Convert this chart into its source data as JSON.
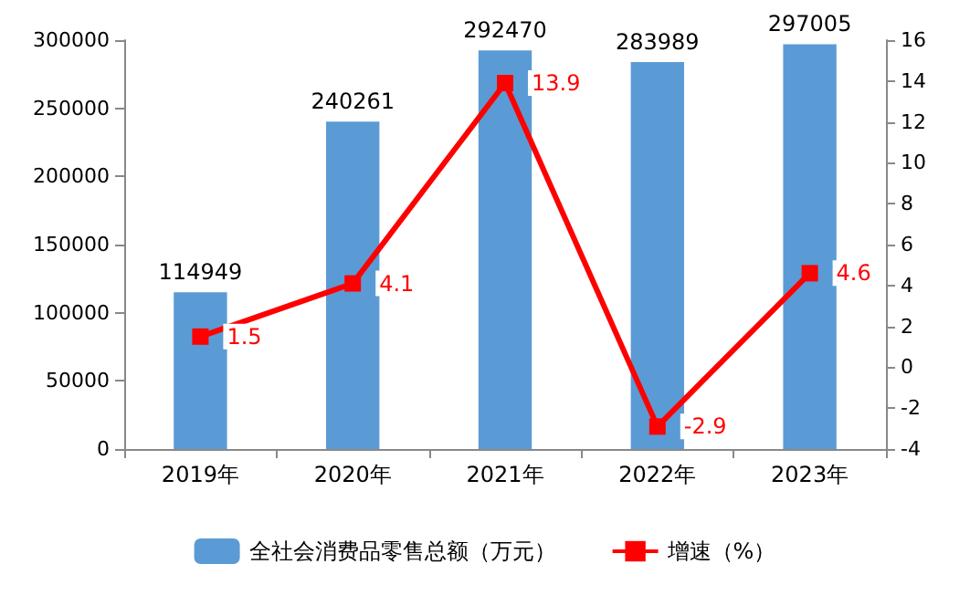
{
  "chart_data": {
    "type": "bar",
    "categories": [
      "2019年",
      "2020年",
      "2021年",
      "2022年",
      "2023年"
    ],
    "series": [
      {
        "name": "全社会消费品零售总额（万元）",
        "color": "#5b9bd5",
        "values": [
          114949,
          240261,
          292470,
          283989,
          297005
        ]
      },
      {
        "name": "增速（%）",
        "type": "line",
        "axis": "y2",
        "color": "#ff0000",
        "values": [
          1.5,
          4.1,
          13.9,
          -2.9,
          4.6
        ]
      }
    ],
    "ylim": [
      0,
      300000
    ],
    "yticks": [
      0,
      50000,
      100000,
      150000,
      200000,
      250000,
      300000
    ],
    "y2lim": [
      -4,
      16
    ],
    "y2ticks": [
      -4,
      -2,
      0,
      2,
      4,
      6,
      8,
      10,
      12,
      14,
      16
    ],
    "data_labels": true,
    "legend": "bottom",
    "marker": "square",
    "line_style": "solid",
    "grid": false
  }
}
